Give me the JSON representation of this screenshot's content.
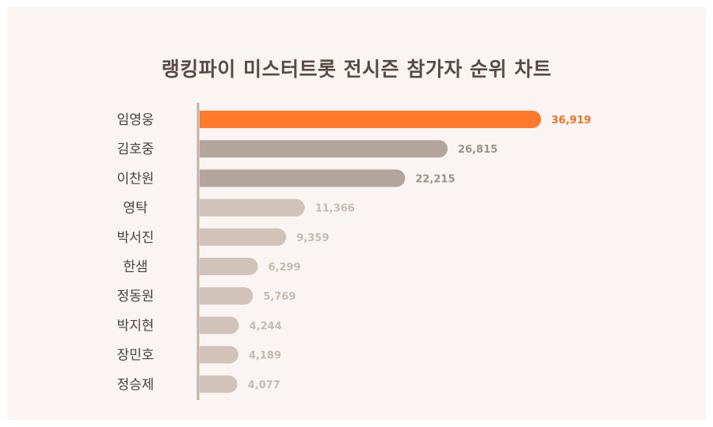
{
  "chart_data": {
    "type": "bar",
    "orientation": "horizontal",
    "title": "랭킹파이 미스터트롯 전시즌 참가자 순위 차트",
    "categories": [
      "임영웅",
      "김호중",
      "이찬원",
      "영탁",
      "박서진",
      "한샘",
      "정동원",
      "박지현",
      "장민호",
      "정승제"
    ],
    "values": [
      36919,
      26815,
      22215,
      11366,
      9359,
      6299,
      5769,
      4244,
      4189,
      4077
    ],
    "value_labels": [
      "36,919",
      "26,815",
      "22,215",
      "11,366",
      "9,359",
      "6,299",
      "5,769",
      "4,244",
      "4,189",
      "4,077"
    ],
    "xlabel": "",
    "ylabel": "",
    "xlim": [
      0,
      36919
    ],
    "grid": false,
    "colors": {
      "highlight": "#fe7a2a",
      "tier2": "#b3a49c",
      "tier3": "#d2c3ba",
      "highlight_label": "#f26f1e",
      "tier2_label": "#9e918a",
      "tier3_label": "#c7bab2",
      "axis": "#c0b1a9",
      "category_label": "#4a3f3b"
    }
  }
}
